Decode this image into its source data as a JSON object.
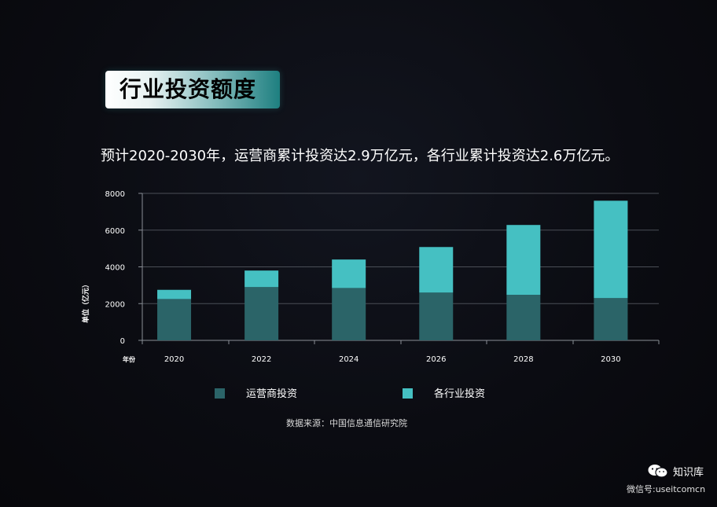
{
  "slide": {
    "title": "行业投资额度",
    "subtitle": "预计2020-2030年，运营商累计投资达2.9万亿元，各行业累计投资达2.6万亿元。",
    "source": "数据来源：中国信息通信研究院",
    "watermark_name": "知识库",
    "watermark_id": "微信号:useitcomcn",
    "watermark_icon": "wechat-icon"
  },
  "chart_data": {
    "type": "bar",
    "stacked": true,
    "ylabel": "单位（亿元）",
    "xlabel": "年份",
    "ylim": [
      0,
      8000
    ],
    "yticks": [
      0,
      2000,
      4000,
      6000,
      8000
    ],
    "x_tick_labels": [
      "2020",
      "2022",
      "2024",
      "2026",
      "2028",
      "2030"
    ],
    "x_tick_years": [
      2020,
      2022,
      2024,
      2026,
      2028,
      2030
    ],
    "bar_years": [
      2020,
      2022,
      2024,
      2026,
      2028,
      2030
    ],
    "series": [
      {
        "name": "运营商投资",
        "color": "#2b6468",
        "values": [
          2250,
          2900,
          2850,
          2600,
          2480,
          2300
        ]
      },
      {
        "name": "各行业投资",
        "color": "#45c0c2",
        "values": [
          500,
          900,
          1550,
          2480,
          3800,
          5300
        ]
      }
    ],
    "grid": true,
    "legend": "bottom"
  }
}
